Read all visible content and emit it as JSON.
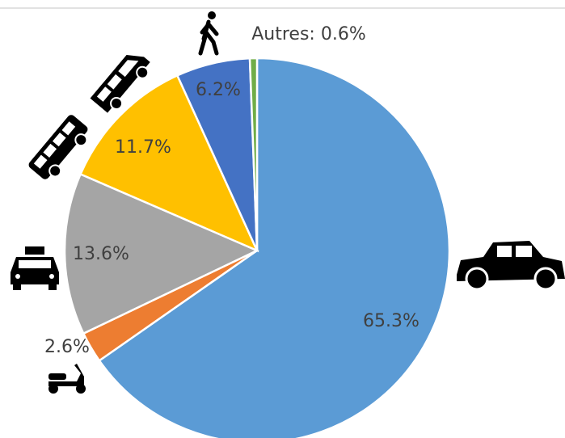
{
  "chart_data": {
    "type": "pie",
    "values": [
      65.3,
      2.6,
      13.6,
      11.7,
      6.2,
      0.6
    ],
    "value_labels": [
      "65.3%",
      "2.6%",
      "13.6%",
      "11.7%",
      "6.2%",
      "Autres: 0.6%"
    ],
    "colors": [
      "#5b9bd5",
      "#ed7d31",
      "#a5a5a5",
      "#ffc000",
      "#4472c4",
      "#70ad47"
    ]
  }
}
